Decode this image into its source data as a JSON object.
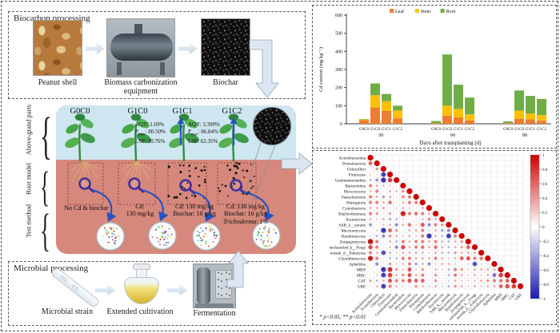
{
  "figure": {
    "biocarbon": {
      "title": "Biocarbon processing",
      "captions": [
        "Peanut shell",
        "Biomass carbonization equipment",
        "Biochar"
      ]
    },
    "treatment": {
      "columns": [
        "G0C0",
        "G1C0",
        "G1C1",
        "G1C2"
      ],
      "row_labels": [
        "Above-grand parts",
        "Root model",
        "Test method"
      ],
      "metrics": [
        {
          "aqy": "AQY: 1.69%",
          "p_label": "P",
          "p_sub": "max",
          "p_value": ": 80.50%",
          "lsp": "LSP: 30.76%"
        },
        {
          "aqy": "AQY: 3.399%",
          "p_label": "P",
          "p_sub": "max",
          "p_value": ": 86.84%",
          "lsp": "LSP: 62.35%"
        }
      ],
      "treatments": {
        "t1": "No Cd & biochar",
        "t2": [
          "Cd:",
          "130 mg/kg"
        ],
        "t3": [
          "Cd: 130 mg/kg",
          "Biochar: 10 g/kg"
        ],
        "t4": [
          "Cd: 130 mg/kg",
          "Biochar: 10 g/kg"
        ],
        "t4_species": "Trichoderma",
        "t4_pct": ": 1%"
      }
    },
    "microbial": {
      "title": "Microbial processing",
      "captions": [
        "Microbial strain",
        "Extended cultivation",
        "Fermentation"
      ]
    }
  },
  "chart_data": [
    {
      "type": "bar",
      "stacked": true,
      "ylabel": "Cd content (mg kg⁻¹)",
      "xlabel": "Days after transplanting (d)",
      "ylim": [
        0,
        600
      ],
      "yticks": [
        0,
        100,
        200,
        300,
        400,
        500,
        600
      ],
      "legend_position": "top",
      "groups": [
        "30",
        "60",
        "90"
      ],
      "bar_labels": [
        "G0C0",
        "G1C0",
        "G1C1",
        "G1C2"
      ],
      "series": [
        {
          "name": "Leaf",
          "color": "#ED7D31",
          "values": [
            [
              20,
              90,
              72,
              30
            ],
            [
              2,
              45,
              35,
              18
            ],
            [
              2,
              28,
              25,
              17
            ]
          ]
        },
        {
          "name": "Stem",
          "color": "#FFC000",
          "values": [
            [
              4,
              68,
              53,
              43
            ],
            [
              2,
              55,
              47,
              34
            ],
            [
              2,
              44,
              32,
              31
            ]
          ]
        },
        {
          "name": "Root",
          "color": "#70AD47",
          "values": [
            [
              2,
              65,
              40,
              27
            ],
            [
              11,
              283,
              134,
              93
            ],
            [
              9,
              112,
              97,
              89
            ]
          ]
        }
      ]
    },
    {
      "type": "heatmap",
      "subtype": "lower-triangle-correlation-bubbles",
      "labels": [
        "Actinobacteriota",
        "Proteobacteria",
        "Chloroflexi",
        "Firmicutes",
        "Gemmatimonadota",
        "Bacteroidota",
        "Myxococcota",
        "Patescibacteria",
        "Nitrospirota",
        "Cyanobacteria",
        "Bdellovibrionota",
        "Ascomycota",
        "SAR_k__norank",
        "Mucoromycota",
        "Basidiomycota",
        "Zoopagomycota",
        "unclassified_k__Fungi",
        "norank_d__Eukaryota",
        "Chytridiomycota",
        "Aphelidea",
        "MBN",
        "MBC",
        "CAT",
        "URE"
      ],
      "colorbar_ticks": [
        1,
        0.8,
        0.6,
        0.4,
        0.2,
        0,
        -0.2,
        -0.4,
        -0.6,
        -0.8,
        -1
      ],
      "colorbar_range": [
        -1,
        1
      ],
      "footnote": "* p<0.05, ** p<0.01",
      "matrix": [
        [
          1
        ],
        [
          0.6,
          1
        ],
        [
          0.1,
          0.4,
          1
        ],
        [
          0.2,
          0.1,
          -0.8,
          1
        ],
        [
          -0.3,
          -0.45,
          -0.85,
          0.75,
          1
        ],
        [
          0.5,
          0.3,
          -0.25,
          0.2,
          0.1,
          1
        ],
        [
          0.3,
          0.5,
          0.1,
          0.3,
          -0.25,
          0.4,
          1
        ],
        [
          0.5,
          0.3,
          -0.4,
          0.3,
          0.15,
          0.45,
          0.5,
          1
        ],
        [
          0.5,
          0.5,
          0.3,
          0.55,
          0.1,
          0.3,
          0.5,
          0.5,
          1
        ],
        [
          0.3,
          0.3,
          0.35,
          -0.1,
          -0.2,
          0.3,
          0.2,
          0.1,
          0.3,
          1
        ],
        [
          0.5,
          0.4,
          0.15,
          0.35,
          0.1,
          0.85,
          0.5,
          0.55,
          0.5,
          0.3,
          1
        ],
        [
          0.3,
          0.2,
          0.3,
          -0.35,
          -0.3,
          0.2,
          0.1,
          0.1,
          0.25,
          0.45,
          0.3,
          1
        ],
        [
          -0.45,
          0.1,
          0.25,
          0.3,
          -0.5,
          0.3,
          0.55,
          0.2,
          0.65,
          -0.5,
          0.5,
          0.4,
          1
        ],
        [
          0.1,
          -0.2,
          -0.85,
          0.6,
          0.4,
          0.1,
          0.3,
          0.3,
          0.5,
          -0.2,
          0.3,
          -0.4,
          -0.5,
          1
        ],
        [
          0.15,
          -0.3,
          -0.5,
          0.4,
          0.3,
          -0.2,
          0.3,
          0.2,
          0.5,
          -0.85,
          0.3,
          -0.3,
          -0.8,
          0.5,
          1
        ],
        [
          0.9,
          0.5,
          0.1,
          0.3,
          -0.3,
          0.5,
          0.3,
          0.5,
          0.5,
          0.3,
          0.5,
          0.3,
          -0.3,
          0.3,
          0.4,
          1
        ],
        [
          0.7,
          0.5,
          0.1,
          0.25,
          -0.5,
          0.7,
          0.3,
          0.5,
          0.55,
          0.3,
          0.55,
          0.3,
          -0.3,
          0.3,
          0.35,
          0.6,
          1
        ],
        [
          0.5,
          0.3,
          -0.75,
          0.3,
          0.2,
          0.3,
          0.3,
          -0.3,
          0.3,
          -0.2,
          0.3,
          -0.3,
          -0.3,
          0.4,
          0.3,
          0.3,
          0.3,
          1
        ],
        [
          0.85,
          0.5,
          0.1,
          -0.3,
          -0.3,
          0.5,
          0.5,
          0.3,
          0.3,
          0.3,
          0.5,
          0.3,
          -0.2,
          0.3,
          0.6,
          0.65,
          0.5,
          0.55,
          1
        ],
        [
          -0.1,
          -0.5,
          0.1,
          0.4,
          0.2,
          0.25,
          0.5,
          -0.4,
          0.3,
          -0.5,
          0.2,
          0.3,
          0.3,
          0.2,
          0.1,
          -0.2,
          -0.75,
          0.2,
          0.2,
          1
        ],
        [
          0.1,
          0.1,
          -0.85,
          0.8,
          0.4,
          0.25,
          0.65,
          0.2,
          0.4,
          0.1,
          0.3,
          -0.2,
          -0.3,
          0.5,
          0.4,
          0.2,
          0.3,
          0.3,
          0.3,
          0.3,
          1
        ],
        [
          0.1,
          0.2,
          -0.8,
          0.75,
          0.3,
          0.4,
          0.65,
          0.3,
          0.5,
          0.1,
          0.4,
          -0.1,
          -0.3,
          0.5,
          0.3,
          0.2,
          0.3,
          0.2,
          0.3,
          -0.6,
          0.75,
          1
        ],
        [
          0.35,
          -0.3,
          0.3,
          0.65,
          0.5,
          0.5,
          0.65,
          0.6,
          0.6,
          0.1,
          0.4,
          0.1,
          -0.2,
          0.3,
          0.2,
          0.2,
          0.25,
          0.3,
          0.4,
          0.5,
          0.55,
          0.6,
          1
        ],
        [
          0.1,
          0.25,
          -0.8,
          0.5,
          0.3,
          0.2,
          0.1,
          0.4,
          0.3,
          0.2,
          0.3,
          -0.2,
          -0.3,
          0.4,
          0.3,
          0.2,
          0.3,
          0.2,
          0.3,
          0.3,
          0.6,
          0.7,
          0.75,
          1
        ]
      ]
    }
  ],
  "colors": {
    "leaf": "#ED7D31",
    "stem": "#FFC000",
    "root": "#70AD47",
    "corr_positive": "#CC0000",
    "corr_negative": "#1A1AAE",
    "band_top": "#CDE6EF",
    "band_bottom": "#D5887B",
    "arrow_blue": "#2753C4"
  }
}
